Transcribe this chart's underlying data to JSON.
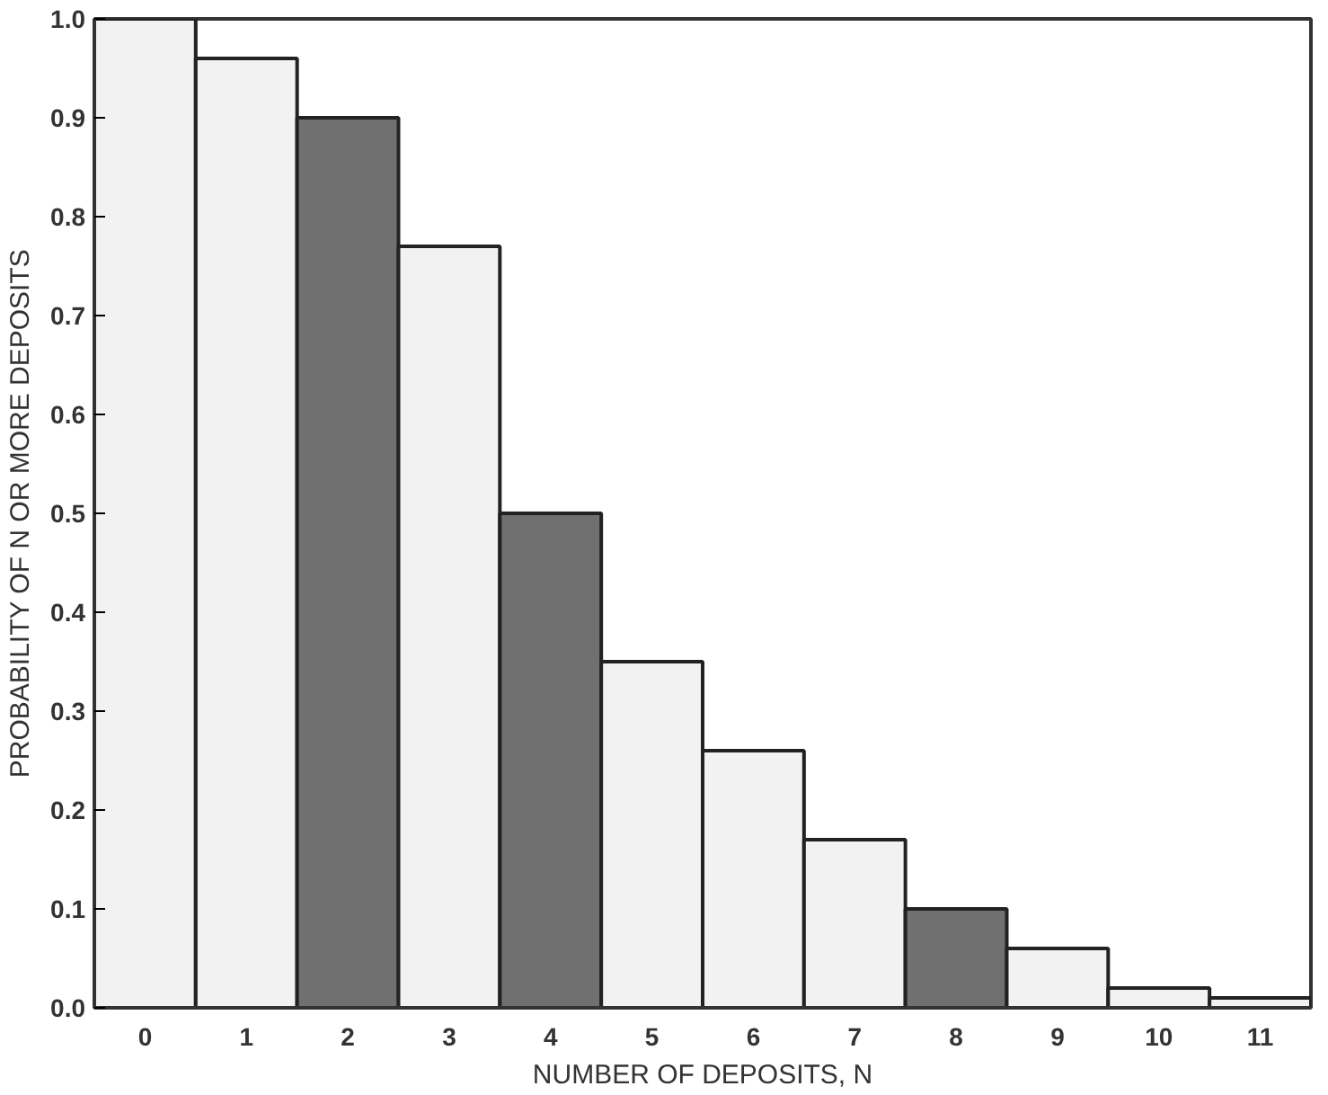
{
  "chart_data": {
    "type": "bar",
    "xlabel": "NUMBER OF DEPOSITS, N",
    "ylabel": "PROBABILITY OF N OR MORE DEPOSITS",
    "categories": [
      "0",
      "1",
      "2",
      "3",
      "4",
      "5",
      "6",
      "7",
      "8",
      "9",
      "10",
      "11"
    ],
    "values": [
      1.0,
      0.96,
      0.9,
      0.77,
      0.5,
      0.35,
      0.26,
      0.17,
      0.1,
      0.06,
      0.02,
      0.01
    ],
    "colors": [
      "#f2f2f2",
      "#f2f2f2",
      "#707070",
      "#f2f2f2",
      "#707070",
      "#f2f2f2",
      "#f2f2f2",
      "#f2f2f2",
      "#707070",
      "#f2f2f2",
      "#f2f2f2",
      "#f2f2f2"
    ],
    "ylim": [
      0,
      1.0
    ],
    "yticks": [
      {
        "value": 0,
        "label": "0.0"
      },
      {
        "value": 0.1,
        "label": "0.1"
      },
      {
        "value": 0.2,
        "label": "0.2"
      },
      {
        "value": 0.3,
        "label": "0.3"
      },
      {
        "value": 0.4,
        "label": "0.4"
      },
      {
        "value": 0.5,
        "label": "0.5"
      },
      {
        "value": 0.6,
        "label": "0.6"
      },
      {
        "value": 0.7,
        "label": "0.7"
      },
      {
        "value": 0.8,
        "label": "0.8"
      },
      {
        "value": 0.9,
        "label": "0.9"
      },
      {
        "value": 1.0,
        "label": "1.0"
      }
    ],
    "grid": false
  }
}
